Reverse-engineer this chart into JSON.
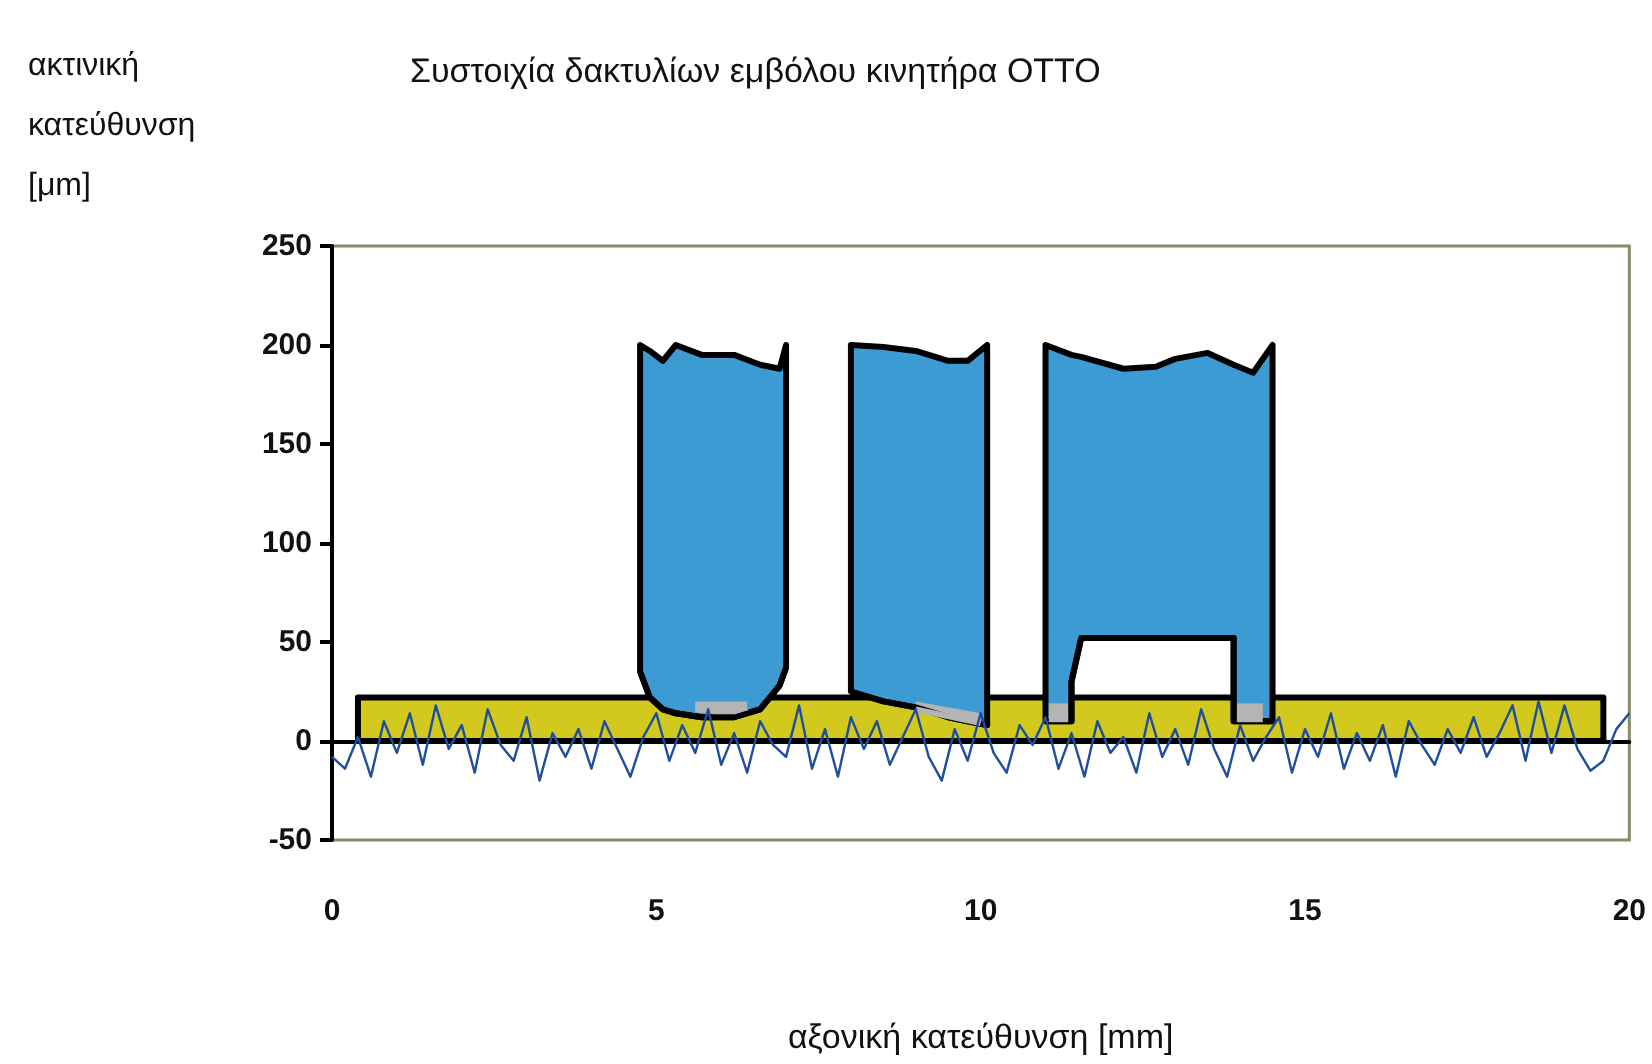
{
  "chart_data": {
    "type": "line",
    "title": "Συστοιχία δακτυλίων εμβόλου κινητήρα OTTO",
    "xlabel": "αξονική κατεύθυνση [mm]",
    "ylabel": "ακτινική κατεύθυνση [μm]",
    "xlim": [
      0,
      20
    ],
    "xticks": [
      0,
      5,
      10,
      15,
      20
    ],
    "ylim": [
      -50,
      250
    ],
    "yticks": [
      -50,
      0,
      50,
      100,
      150,
      200,
      250
    ],
    "grid": false,
    "marker": "none",
    "series": [
      {
        "type": "area",
        "color": "#d2c81e",
        "x": [
          0.4,
          19.6
        ],
        "values": [
          22,
          22
        ]
      },
      {
        "type": "line",
        "color": "#1f4e9c",
        "x": [
          0,
          0.2,
          0.4,
          0.6,
          0.8,
          1,
          1.2,
          1.4,
          1.6,
          1.8,
          2,
          2.2,
          2.4,
          2.6,
          2.8,
          3,
          3.2,
          3.4,
          3.6,
          3.8,
          4,
          4.2,
          4.4,
          4.6,
          4.8,
          5,
          5.2,
          5.4,
          5.6,
          5.8,
          6,
          6.2,
          6.4,
          6.6,
          6.8,
          7,
          7.2,
          7.4,
          7.6,
          7.8,
          8,
          8.2,
          8.4,
          8.6,
          8.8,
          9,
          9.2,
          9.4,
          9.6,
          9.8,
          10,
          10.2,
          10.4,
          10.6,
          10.8,
          11,
          11.2,
          11.4,
          11.6,
          11.8,
          12,
          12.2,
          12.4,
          12.6,
          12.8,
          13,
          13.2,
          13.4,
          13.6,
          13.8,
          14,
          14.2,
          14.4,
          14.6,
          14.8,
          15,
          15.2,
          15.4,
          15.6,
          15.8,
          16,
          16.2,
          16.4,
          16.6,
          16.8,
          17,
          17.2,
          17.4,
          17.6,
          17.8,
          18,
          18.2,
          18.4,
          18.6,
          18.8,
          19,
          19.2,
          19.4,
          19.6,
          19.8,
          20
        ],
        "values": [
          -8,
          -14,
          2,
          -18,
          10,
          -6,
          14,
          -12,
          18,
          -4,
          8,
          -16,
          16,
          -2,
          -10,
          12,
          -20,
          4,
          -8,
          6,
          -14,
          10,
          -4,
          -18,
          2,
          14,
          -10,
          8,
          -6,
          16,
          -12,
          4,
          -16,
          10,
          -2,
          -8,
          18,
          -14,
          6,
          -18,
          12,
          -4,
          10,
          -12,
          2,
          16,
          -8,
          -20,
          6,
          -10,
          14,
          -6,
          -16,
          8,
          -2,
          12,
          -14,
          4,
          -18,
          10,
          -6,
          2,
          -16,
          14,
          -8,
          6,
          -12,
          16,
          -4,
          -18,
          8,
          -10,
          2,
          12,
          -16,
          6,
          -8,
          14,
          -14,
          4,
          -10,
          8,
          -18,
          10,
          -2,
          -12,
          6,
          -6,
          12,
          -8,
          4,
          18,
          -10,
          20,
          -6,
          18,
          -4,
          -15,
          -10,
          6,
          14
        ]
      },
      {
        "type": "area",
        "color": "#3d9bd4",
        "x": [
          4.75,
          4.9,
          5.1,
          5.3,
          5.7,
          6.2,
          6.6,
          6.9,
          7.0
        ],
        "values": [
          200,
          197,
          192,
          200,
          195,
          195,
          190,
          188,
          200
        ]
      },
      {
        "type": "line",
        "color": "#000000",
        "x": [
          4.75,
          4.9,
          5.1,
          5.3,
          5.7,
          6.2,
          6.6,
          6.9,
          7.0
        ],
        "values": [
          35,
          22,
          16,
          14,
          12,
          12,
          16,
          28,
          37
        ]
      },
      {
        "type": "area",
        "color": "#3d9bd4",
        "x": [
          8.0,
          8.5,
          9.0,
          9.5,
          9.8,
          10.1
        ],
        "values": [
          200,
          199,
          197,
          192,
          192,
          200
        ]
      },
      {
        "type": "line",
        "color": "#000000",
        "x": [
          8.0,
          8.5,
          9.0,
          9.5,
          9.8,
          10.1
        ],
        "values": [
          25,
          20,
          17,
          12,
          10,
          8
        ]
      },
      {
        "type": "area",
        "color": "#3d9bd4",
        "x": [
          11.0,
          11.4,
          11.4,
          11.55,
          12.2,
          12.7,
          13.0,
          13.5,
          13.9,
          13.9,
          14.2,
          14.5
        ],
        "values": [
          200,
          195,
          195,
          194,
          188,
          189,
          193,
          196,
          190,
          190,
          186,
          200
        ]
      },
      {
        "type": "line",
        "color": "#000000",
        "x": [
          11.0,
          11.4,
          11.4,
          11.55,
          12.2,
          12.7,
          13.0,
          13.5,
          13.9,
          13.9,
          14.2,
          14.5
        ],
        "values": [
          10,
          10,
          30,
          52,
          52,
          52,
          52,
          52,
          52,
          10,
          10,
          10
        ]
      },
      {
        "type": "area",
        "color": "#b4b4b4",
        "x": [
          5.6,
          5.9,
          6.2,
          6.4
        ],
        "values": [
          20,
          20,
          20,
          20
        ]
      },
      {
        "type": "line",
        "color": "#b4b4b4",
        "x": [
          5.6,
          5.9,
          6.2,
          6.4
        ],
        "values": [
          16,
          15,
          15,
          17
        ]
      },
      {
        "type": "area",
        "color": "#b4b4b4",
        "x": [
          9.0,
          10.0
        ],
        "values": [
          20,
          14
        ]
      },
      {
        "type": "line",
        "color": "#b4b4b4",
        "x": [
          9.0,
          10.0
        ],
        "values": [
          16,
          9
        ]
      },
      {
        "type": "area",
        "color": "#b4b4b4",
        "x": [
          11.05,
          11.35
        ],
        "values": [
          19,
          19
        ]
      },
      {
        "type": "line",
        "color": "#b4b4b4",
        "x": [
          11.05,
          11.35
        ],
        "values": [
          11,
          11
        ]
      },
      {
        "type": "area",
        "color": "#b4b4b4",
        "x": [
          13.95,
          14.35
        ],
        "values": [
          19,
          19
        ]
      },
      {
        "type": "line",
        "color": "#b4b4b4",
        "x": [
          13.95,
          14.35
        ],
        "values": [
          11,
          11
        ]
      }
    ]
  }
}
